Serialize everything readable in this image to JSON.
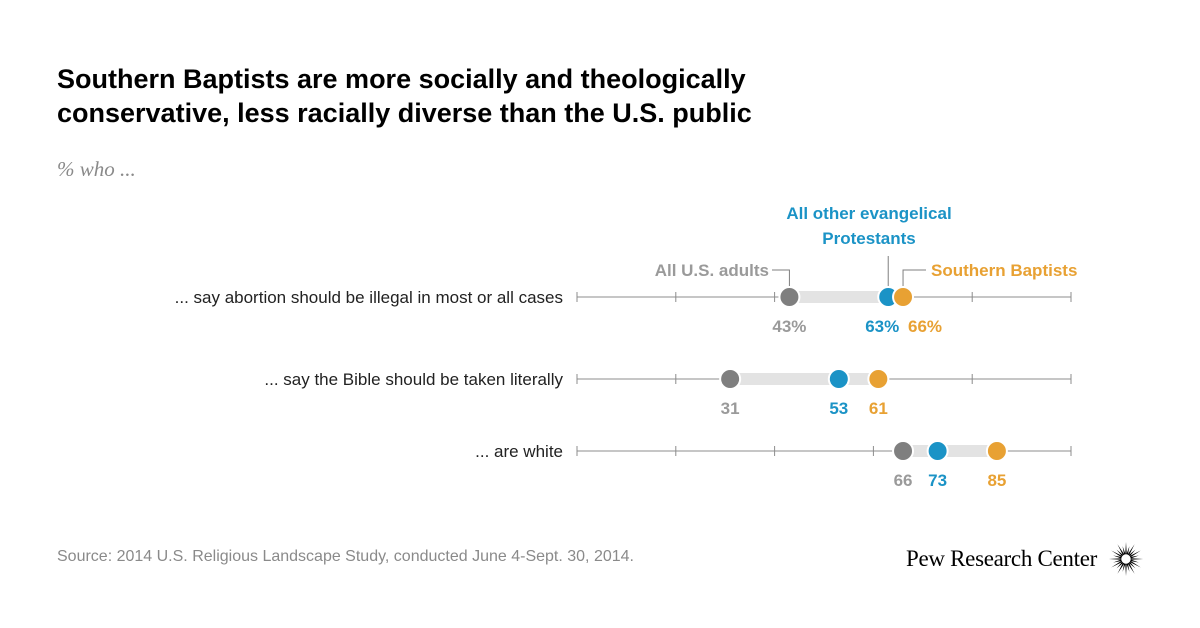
{
  "title": "Southern Baptists are more socially and theologically conservative, less racially diverse than the U.S. public",
  "subtitle": "% who ...",
  "source": "Source: 2014 U.S. Religious Landscape Study, conducted June 4-Sept. 30, 2014.",
  "brand": "Pew Research Center",
  "colors": {
    "adults": "#7f7f7f",
    "adults_label": "#9a9a9a",
    "evangelical": "#1b93c6",
    "baptists": "#e8a133",
    "connector": "#e3e3e3",
    "axis": "#8c8c8c"
  },
  "chart_data": {
    "type": "dot",
    "title": "Southern Baptists are more socially and theologically conservative, less racially diverse than the U.S. public",
    "xlim": [
      0,
      100
    ],
    "tick_step": 10,
    "series": [
      {
        "key": "adults",
        "name": "All U.S. adults"
      },
      {
        "key": "evangelical",
        "name": "All other evangelical Protestants",
        "name_lines": [
          "All other evangelical",
          "Protestants"
        ]
      },
      {
        "key": "baptists",
        "name": "Southern Baptists"
      }
    ],
    "rows": [
      {
        "label": "... say abortion should be illegal in most or all cases",
        "values": {
          "adults": 43,
          "evangelical": 63,
          "baptists": 66
        },
        "value_labels": {
          "adults": "43%",
          "evangelical": "63%",
          "baptists": "66%"
        }
      },
      {
        "label": "... say the Bible should be taken literally",
        "values": {
          "adults": 31,
          "evangelical": 53,
          "baptists": 61
        },
        "value_labels": {
          "adults": "31",
          "evangelical": "53",
          "baptists": "61"
        }
      },
      {
        "label": "... are white",
        "values": {
          "adults": 66,
          "evangelical": 73,
          "baptists": 85
        },
        "value_labels": {
          "adults": "66",
          "evangelical": "73",
          "baptists": "85"
        }
      }
    ]
  }
}
